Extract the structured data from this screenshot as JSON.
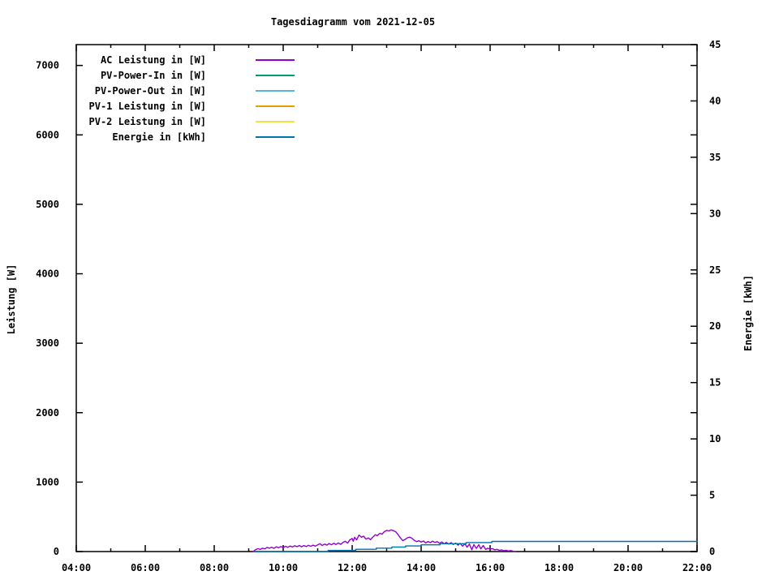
{
  "title": "Tagesdiagramm vom 2021-12-05",
  "axes": {
    "y_left_label": "Leistung [W]",
    "y_right_label": "Energie [kWh]"
  },
  "legend": {
    "entries": [
      {
        "label": "AC Leistung in [W]",
        "color": "#9400d3"
      },
      {
        "label": "PV-Power-In in [W]",
        "color": "#009e73"
      },
      {
        "label": "PV-Power-Out in [W]",
        "color": "#56b4e9"
      },
      {
        "label": "PV-1 Leistung in [W]",
        "color": "#e69f00"
      },
      {
        "label": "PV-2 Leistung in [W]",
        "color": "#f0e442"
      },
      {
        "label": "Energie in [kWh]",
        "color": "#0072b2"
      }
    ]
  },
  "chart_data": {
    "type": "line",
    "title": "Tagesdiagramm vom 2021-12-05",
    "x_axis": {
      "unit": "time",
      "range_hours": [
        4,
        22
      ],
      "major_tick_every_hours": 2,
      "minor_tick_every_hours": 1,
      "major_tick_hours": [
        4,
        6,
        8,
        10,
        12,
        14,
        16,
        18,
        20,
        22
      ],
      "tick_labels": [
        "04:00",
        "06:00",
        "08:00",
        "10:00",
        "12:00",
        "14:00",
        "16:00",
        "18:00",
        "20:00",
        "22:00"
      ]
    },
    "y_left": {
      "label": "Leistung [W]",
      "range": [
        0,
        7300
      ],
      "ticks": [
        0,
        1000,
        2000,
        3000,
        4000,
        5000,
        6000,
        7000
      ]
    },
    "y_right": {
      "label": "Energie [kWh]",
      "range": [
        0,
        45
      ],
      "ticks": [
        0,
        5,
        10,
        15,
        20,
        25,
        30,
        35,
        40,
        45
      ]
    },
    "grid": false,
    "legend_position": "top-left-inside",
    "series": [
      {
        "name": "AC Leistung in [W]",
        "color": "#9400d3",
        "axis": "left",
        "points": [
          [
            9.13,
            0
          ],
          [
            9.2,
            28
          ],
          [
            9.27,
            42
          ],
          [
            9.33,
            30
          ],
          [
            9.4,
            48
          ],
          [
            9.47,
            38
          ],
          [
            9.53,
            60
          ],
          [
            9.6,
            48
          ],
          [
            9.67,
            62
          ],
          [
            9.73,
            45
          ],
          [
            9.8,
            68
          ],
          [
            9.87,
            55
          ],
          [
            9.93,
            72
          ],
          [
            10.0,
            58
          ],
          [
            10.07,
            76
          ],
          [
            10.13,
            62
          ],
          [
            10.2,
            80
          ],
          [
            10.27,
            66
          ],
          [
            10.33,
            84
          ],
          [
            10.4,
            70
          ],
          [
            10.47,
            88
          ],
          [
            10.53,
            68
          ],
          [
            10.6,
            86
          ],
          [
            10.67,
            72
          ],
          [
            10.73,
            90
          ],
          [
            10.8,
            76
          ],
          [
            10.87,
            92
          ],
          [
            10.93,
            78
          ],
          [
            11.0,
            96
          ],
          [
            11.07,
            112
          ],
          [
            11.13,
            88
          ],
          [
            11.2,
            108
          ],
          [
            11.27,
            92
          ],
          [
            11.33,
            116
          ],
          [
            11.4,
            98
          ],
          [
            11.47,
            120
          ],
          [
            11.53,
            102
          ],
          [
            11.6,
            124
          ],
          [
            11.67,
            104
          ],
          [
            11.73,
            132
          ],
          [
            11.8,
            148
          ],
          [
            11.87,
            122
          ],
          [
            11.93,
            168
          ],
          [
            12.0,
            188
          ],
          [
            12.03,
            148
          ],
          [
            12.07,
            205
          ],
          [
            12.13,
            168
          ],
          [
            12.2,
            238
          ],
          [
            12.27,
            205
          ],
          [
            12.33,
            222
          ],
          [
            12.4,
            180
          ],
          [
            12.47,
            196
          ],
          [
            12.53,
            170
          ],
          [
            12.6,
            208
          ],
          [
            12.67,
            242
          ],
          [
            12.73,
            230
          ],
          [
            12.8,
            262
          ],
          [
            12.87,
            252
          ],
          [
            12.93,
            285
          ],
          [
            13.0,
            305
          ],
          [
            13.07,
            298
          ],
          [
            13.13,
            312
          ],
          [
            13.2,
            300
          ],
          [
            13.27,
            282
          ],
          [
            13.33,
            245
          ],
          [
            13.4,
            195
          ],
          [
            13.47,
            158
          ],
          [
            13.53,
            172
          ],
          [
            13.6,
            198
          ],
          [
            13.67,
            208
          ],
          [
            13.73,
            192
          ],
          [
            13.8,
            162
          ],
          [
            13.87,
            142
          ],
          [
            13.93,
            155
          ],
          [
            14.0,
            138
          ],
          [
            14.07,
            152
          ],
          [
            14.13,
            124
          ],
          [
            14.2,
            145
          ],
          [
            14.27,
            128
          ],
          [
            14.33,
            150
          ],
          [
            14.4,
            132
          ],
          [
            14.47,
            142
          ],
          [
            14.53,
            118
          ],
          [
            14.6,
            138
          ],
          [
            14.67,
            112
          ],
          [
            14.73,
            132
          ],
          [
            14.8,
            108
          ],
          [
            14.87,
            128
          ],
          [
            14.93,
            102
          ],
          [
            15.0,
            122
          ],
          [
            15.07,
            92
          ],
          [
            15.13,
            118
          ],
          [
            15.2,
            78
          ],
          [
            15.27,
            112
          ],
          [
            15.33,
            62
          ],
          [
            15.4,
            108
          ],
          [
            15.47,
            25
          ],
          [
            15.53,
            100
          ],
          [
            15.6,
            45
          ],
          [
            15.67,
            98
          ],
          [
            15.73,
            38
          ],
          [
            15.8,
            88
          ],
          [
            15.87,
            30
          ],
          [
            15.93,
            48
          ],
          [
            16.0,
            35
          ],
          [
            16.07,
            42
          ],
          [
            16.13,
            25
          ],
          [
            16.2,
            32
          ],
          [
            16.27,
            18
          ],
          [
            16.33,
            24
          ],
          [
            16.4,
            12
          ],
          [
            16.47,
            18
          ],
          [
            16.53,
            8
          ],
          [
            16.6,
            14
          ],
          [
            16.67,
            5
          ],
          [
            16.73,
            0
          ]
        ]
      },
      {
        "name": "PV-Power-In in [W]",
        "color": "#009e73",
        "axis": "left",
        "points": []
      },
      {
        "name": "PV-Power-Out in [W]",
        "color": "#56b4e9",
        "axis": "left",
        "points": []
      },
      {
        "name": "PV-1 Leistung in [W]",
        "color": "#e69f00",
        "axis": "left",
        "points": []
      },
      {
        "name": "PV-2 Leistung in [W]",
        "color": "#f0e442",
        "axis": "left",
        "points": []
      },
      {
        "name": "Energie in [kWh]",
        "color": "#0072b2",
        "axis": "right",
        "points": [
          [
            9.17,
            0
          ],
          [
            11.3,
            0
          ],
          [
            11.3,
            0.1
          ],
          [
            12.1,
            0.1
          ],
          [
            12.1,
            0.2
          ],
          [
            12.7,
            0.2
          ],
          [
            12.7,
            0.3
          ],
          [
            13.15,
            0.3
          ],
          [
            13.15,
            0.4
          ],
          [
            13.55,
            0.4
          ],
          [
            13.55,
            0.5
          ],
          [
            14.0,
            0.5
          ],
          [
            14.0,
            0.6
          ],
          [
            14.55,
            0.6
          ],
          [
            14.55,
            0.7
          ],
          [
            15.3,
            0.7
          ],
          [
            15.3,
            0.8
          ],
          [
            16.05,
            0.8
          ],
          [
            16.05,
            0.9
          ],
          [
            22.0,
            0.9
          ]
        ]
      }
    ]
  }
}
